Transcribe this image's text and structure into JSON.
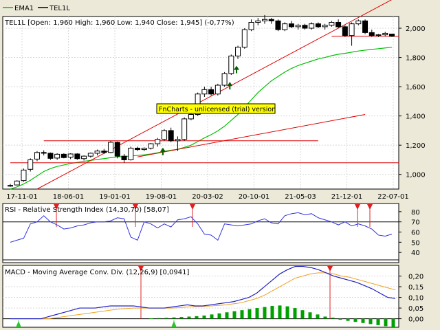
{
  "legend": {
    "items": [
      {
        "name": "EMA1",
        "color": "#00c000"
      },
      {
        "name": "TEL1L",
        "color": "#000000"
      }
    ]
  },
  "watermark": "FnCharts - unlicensed (trial) version",
  "colors": {
    "background": "#ffffff",
    "frame": "#ece9d8",
    "ema": "#00c000",
    "level_line": "#e00000",
    "trend_line": "#e00000",
    "rsi_line": "#3030e0",
    "macd_line": "#2020c0",
    "signal_line": "#f0a020",
    "histogram": "#00a000",
    "up_arrow": "#006000",
    "marker_up": "#30c030",
    "marker_down": "#e02020",
    "watermark_bg": "#ffff00"
  },
  "chart_data": [
    {
      "type": "candlestick",
      "title": "TEL1L [Open: 1,960  High: 1,960  Low: 1,940  Close: 1,945] (-0,77%)",
      "x_labels": [
        "17-11-01",
        "18-06-01",
        "19-01-01",
        "19-08-01",
        "20-03-02",
        "20-10-01",
        "21-05-03",
        "21-12-01",
        "22-07-01"
      ],
      "y_ticks": [
        1000,
        1200,
        1400,
        1600,
        1800,
        2000
      ],
      "y_tick_labels": [
        "1,000",
        "1,200",
        "1,400",
        "1,600",
        "1,800",
        "2,000"
      ],
      "ylim": [
        900,
        2080
      ],
      "candles": [
        [
          920,
          935,
          915,
          925
        ],
        [
          928,
          960,
          925,
          955
        ],
        [
          958,
          1040,
          950,
          1030
        ],
        [
          1035,
          1110,
          1020,
          1100
        ],
        [
          1105,
          1160,
          1090,
          1150
        ],
        [
          1150,
          1165,
          1130,
          1145
        ],
        [
          1145,
          1150,
          1100,
          1110
        ],
        [
          1112,
          1145,
          1100,
          1138
        ],
        [
          1138,
          1145,
          1110,
          1115
        ],
        [
          1118,
          1145,
          1105,
          1140
        ],
        [
          1140,
          1145,
          1100,
          1108
        ],
        [
          1108,
          1130,
          1095,
          1125
        ],
        [
          1125,
          1150,
          1115,
          1145
        ],
        [
          1145,
          1170,
          1130,
          1160
        ],
        [
          1160,
          1175,
          1140,
          1150
        ],
        [
          1150,
          1230,
          1145,
          1220
        ],
        [
          1220,
          1225,
          1110,
          1125
        ],
        [
          1125,
          1140,
          1080,
          1100
        ],
        [
          1100,
          1190,
          1095,
          1180
        ],
        [
          1180,
          1190,
          1160,
          1170
        ],
        [
          1170,
          1185,
          1160,
          1180
        ],
        [
          1180,
          1215,
          1170,
          1210
        ],
        [
          1210,
          1250,
          1190,
          1240
        ],
        [
          1240,
          1310,
          1230,
          1300
        ],
        [
          1300,
          1320,
          1220,
          1230
        ],
        [
          1230,
          1260,
          1160,
          1240
        ],
        [
          1240,
          1390,
          1230,
          1380
        ],
        [
          1380,
          1420,
          1370,
          1410
        ],
        [
          1410,
          1560,
          1400,
          1550
        ],
        [
          1550,
          1600,
          1530,
          1580
        ],
        [
          1580,
          1600,
          1540,
          1550
        ],
        [
          1550,
          1620,
          1540,
          1610
        ],
        [
          1610,
          1700,
          1600,
          1690
        ],
        [
          1690,
          1820,
          1680,
          1810
        ],
        [
          1810,
          1880,
          1790,
          1870
        ],
        [
          1870,
          2000,
          1860,
          1990
        ],
        [
          1990,
          2060,
          1980,
          2040
        ],
        [
          2040,
          2070,
          2020,
          2050
        ],
        [
          2050,
          2090,
          2030,
          2060
        ],
        [
          2060,
          2070,
          2030,
          2050
        ],
        [
          2050,
          2060,
          1980,
          1990
        ],
        [
          1990,
          2040,
          1980,
          2030
        ],
        [
          2030,
          2050,
          2000,
          2010
        ],
        [
          2010,
          2030,
          1990,
          2020
        ],
        [
          2020,
          2030,
          1990,
          2000
        ],
        [
          2000,
          2040,
          1990,
          2030
        ],
        [
          2030,
          2040,
          2000,
          2010
        ],
        [
          2010,
          2030,
          1990,
          2020
        ],
        [
          2020,
          2050,
          2010,
          2040
        ],
        [
          2040,
          2060,
          2000,
          2010
        ],
        [
          2010,
          2020,
          1940,
          1950
        ],
        [
          1950,
          2040,
          1880,
          2030
        ],
        [
          2030,
          2060,
          2020,
          2050
        ],
        [
          2050,
          2060,
          1960,
          1970
        ],
        [
          1970,
          1990,
          1940,
          1950
        ],
        [
          1950,
          1960,
          1940,
          1955
        ],
        [
          1955,
          1975,
          1945,
          1965
        ],
        [
          1960,
          1960,
          1940,
          1945
        ]
      ],
      "ema": [
        900,
        915,
        935,
        960,
        990,
        1020,
        1040,
        1055,
        1065,
        1075,
        1082,
        1090,
        1096,
        1102,
        1108,
        1115,
        1120,
        1122,
        1126,
        1130,
        1134,
        1140,
        1148,
        1158,
        1166,
        1172,
        1185,
        1200,
        1225,
        1250,
        1272,
        1298,
        1330,
        1370,
        1410,
        1460,
        1510,
        1560,
        1600,
        1640,
        1670,
        1700,
        1725,
        1745,
        1760,
        1775,
        1790,
        1800,
        1812,
        1822,
        1828,
        1836,
        1844,
        1850,
        1855,
        1860,
        1865,
        1870
      ],
      "levels": [
        {
          "value": 1230,
          "from": 5,
          "to": 46
        },
        {
          "value": 1080,
          "from": 0,
          "to": 80
        },
        {
          "value": 1945,
          "from": 48,
          "to": 80
        }
      ],
      "trend_lines": [
        {
          "from": [
            4,
            900
          ],
          "to": [
            58,
            2220
          ]
        },
        {
          "from": [
            19,
            1120
          ],
          "to": [
            53,
            1410
          ]
        }
      ],
      "up_arrows": [
        23,
        33,
        34
      ]
    },
    {
      "type": "line",
      "title": "RSI - Relative Strength Index (14,30,70) [58,07]",
      "y_ticks": [
        40,
        50,
        60,
        70,
        80
      ],
      "ylim": [
        30,
        88
      ],
      "threshold": 70,
      "values": [
        50,
        52,
        54,
        68,
        70,
        76,
        70,
        67,
        63,
        64,
        66,
        67,
        69,
        70,
        70,
        71,
        74,
        73,
        55,
        52,
        70,
        68,
        64,
        68,
        65,
        72,
        73,
        75,
        68,
        58,
        57,
        52,
        68,
        67,
        66,
        67,
        68,
        71,
        73,
        69,
        68,
        76,
        78,
        79,
        77,
        78,
        74,
        72,
        70,
        67,
        70,
        66,
        68,
        66,
        63,
        57,
        56,
        58
      ],
      "down_markers": [
        9,
        23,
        33,
        60,
        61
      ]
    },
    {
      "type": "line",
      "title": "MACD - Moving Average Conv. Div. (12,26,9) [0,0941]",
      "y_ticks": [
        0,
        0.05,
        0.1,
        0.15,
        0.2
      ],
      "y_tick_labels": [
        "0,00",
        "0,05",
        "0,10",
        "0,15",
        "0,20"
      ],
      "ylim": [
        -0.04,
        0.25
      ],
      "macd": [
        0,
        0,
        0,
        0,
        0,
        0.01,
        0.02,
        0.03,
        0.04,
        0.05,
        0.05,
        0.05,
        0.055,
        0.06,
        0.06,
        0.06,
        0.06,
        0.055,
        0.05,
        0.05,
        0.05,
        0.055,
        0.06,
        0.065,
        0.06,
        0.06,
        0.065,
        0.07,
        0.075,
        0.08,
        0.09,
        0.1,
        0.12,
        0.15,
        0.18,
        0.21,
        0.23,
        0.245,
        0.245,
        0.24,
        0.23,
        0.215,
        0.2,
        0.19,
        0.18,
        0.17,
        0.155,
        0.14,
        0.12,
        0.1,
        0.095
      ],
      "signal": [
        0,
        0,
        0,
        0,
        0,
        0,
        0.005,
        0.01,
        0.015,
        0.02,
        0.025,
        0.03,
        0.035,
        0.04,
        0.045,
        0.048,
        0.05,
        0.05,
        0.05,
        0.05,
        0.05,
        0.05,
        0.052,
        0.055,
        0.057,
        0.058,
        0.06,
        0.062,
        0.065,
        0.07,
        0.075,
        0.085,
        0.095,
        0.11,
        0.13,
        0.15,
        0.17,
        0.19,
        0.2,
        0.21,
        0.215,
        0.215,
        0.21,
        0.2,
        0.195,
        0.185,
        0.175,
        0.165,
        0.155,
        0.145,
        0.135
      ],
      "histogram": [
        0.002,
        0.003,
        0.004,
        0.006,
        0.008,
        0.01,
        0.012,
        0.015,
        0.02,
        0.025,
        0.03,
        0.035,
        0.04,
        0.045,
        0.05,
        0.055,
        0.06,
        0.062,
        0.058,
        0.05,
        0.04,
        0.03,
        0.02,
        0.01,
        0.005,
        -0.005,
        -0.01,
        -0.015,
        -0.02,
        -0.025,
        -0.03,
        -0.035,
        -0.04
      ],
      "histogram_start": 18,
      "down_markers": [
        11,
        52
      ],
      "up_markers": [
        1,
        39
      ]
    }
  ]
}
